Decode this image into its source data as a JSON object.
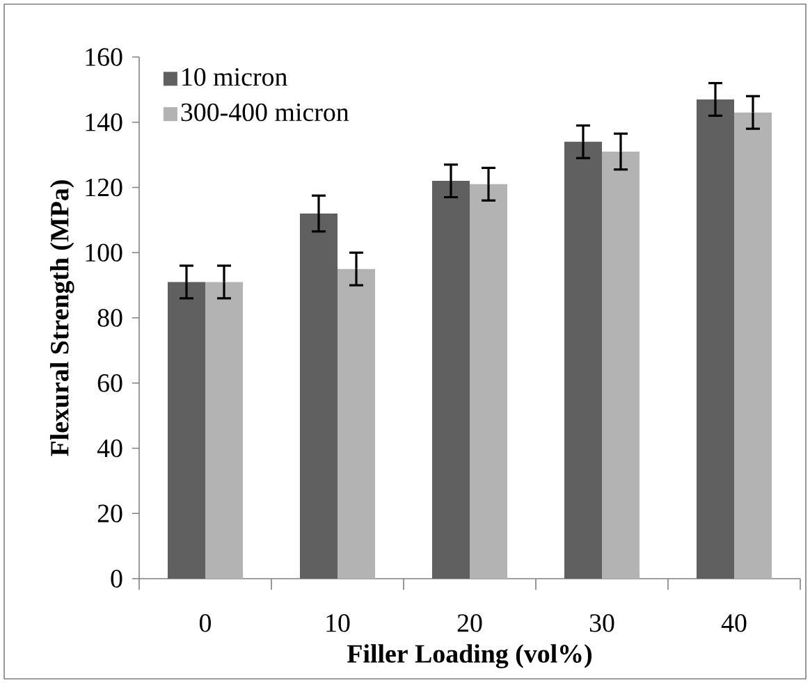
{
  "chart_data": {
    "type": "bar",
    "xlabel": "Filler Loading (vol%)",
    "ylabel": "Flexural Strength (MPa)",
    "categories": [
      "0",
      "10",
      "20",
      "30",
      "40"
    ],
    "series": [
      {
        "name": "10 micron",
        "color": "#606060",
        "values": [
          91,
          112,
          122,
          134,
          147
        ],
        "errors": [
          5,
          5.5,
          5,
          5,
          5
        ]
      },
      {
        "name": "300-400 micron",
        "color": "#b3b3b3",
        "values": [
          91,
          95,
          121,
          131,
          143
        ],
        "errors": [
          5,
          5,
          5,
          5.5,
          5
        ]
      }
    ],
    "ylim": [
      0,
      160
    ],
    "yticks": [
      0,
      20,
      40,
      60,
      80,
      100,
      120,
      140,
      160
    ],
    "grid": false,
    "legend": "top left"
  }
}
